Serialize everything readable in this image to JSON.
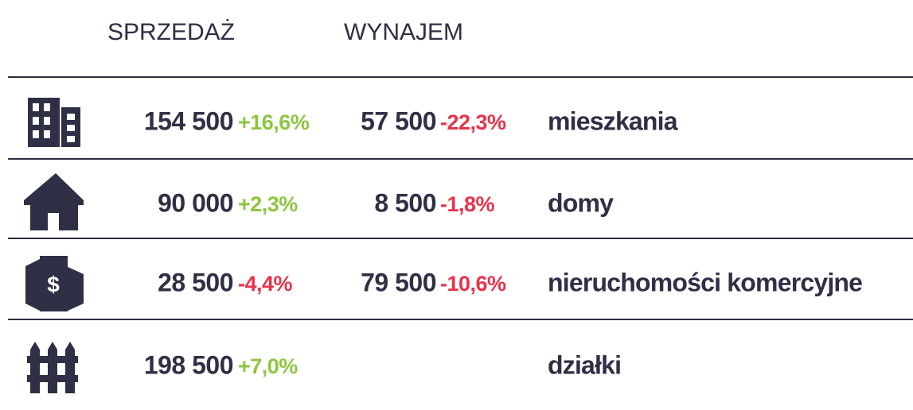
{
  "header": {
    "columns": [
      "SPRZEDAŻ",
      "WYNAJEM"
    ]
  },
  "rows": [
    {
      "sale": "154 500",
      "sale_change": "+16,6%",
      "rent": "57 500",
      "rent_change": "-22,3%",
      "label": "mieszkania"
    },
    {
      "sale": "90 000",
      "sale_change": "+2,3%",
      "rent": "8 500",
      "rent_change": "-1,8%",
      "label": "domy"
    },
    {
      "sale": "28 500",
      "sale_change": "-4,4%",
      "rent": "79 500",
      "rent_change": "-10,6%",
      "label": "nieruchomości komercyjne"
    },
    {
      "sale": "198 500",
      "sale_change": "+7,0%",
      "label": "działki"
    }
  ]
}
